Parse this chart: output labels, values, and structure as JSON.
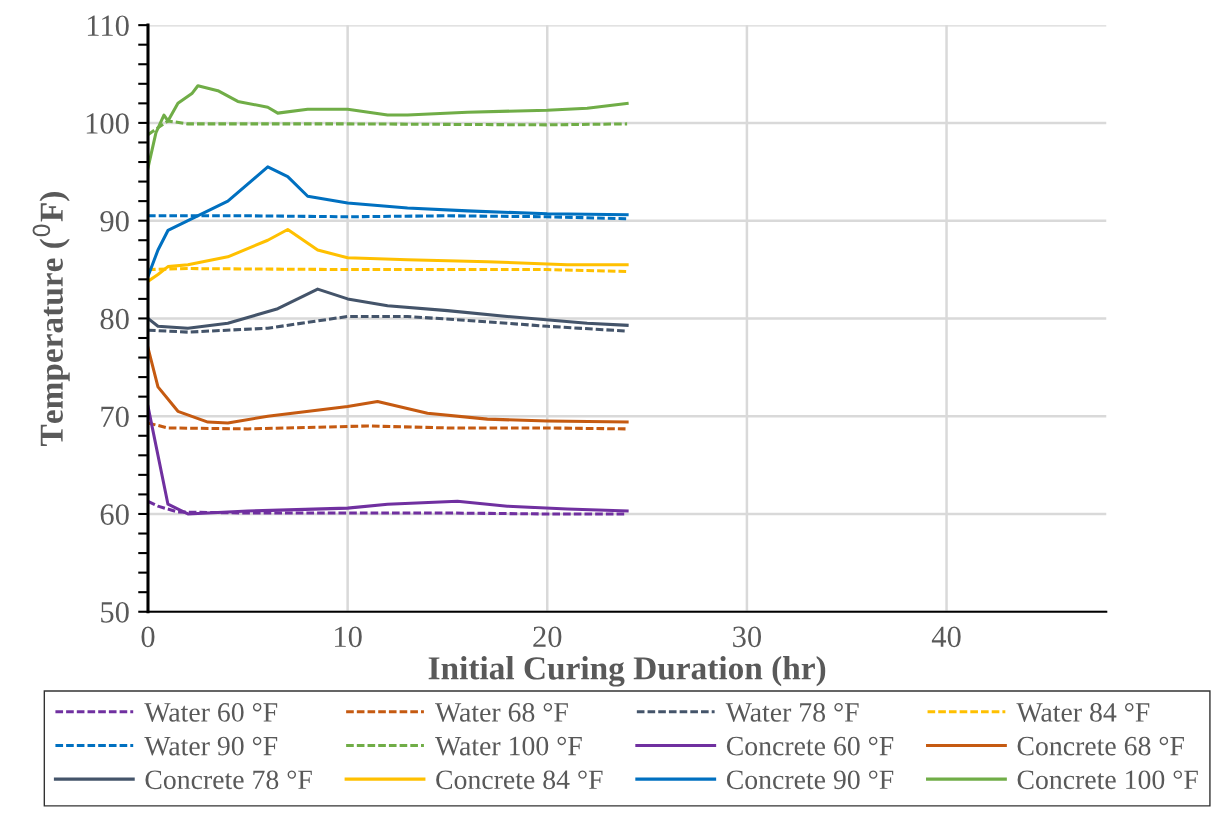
{
  "chart_data": {
    "type": "line",
    "xlabel": "Initial Curing Duration (hr)",
    "ylabel": "Temperature ($^{0}$F)",
    "xlim": [
      0,
      48
    ],
    "xticks": [
      0,
      10,
      20,
      30,
      40
    ],
    "ylim": [
      50,
      110
    ],
    "yticks": [
      50,
      60,
      70,
      80,
      90,
      100,
      110
    ],
    "grid": true,
    "legend": "bottom",
    "marker": "none",
    "series": [
      {
        "name": "Water 60 °F",
        "color": "#7030a0",
        "line_style": "dashed",
        "x": [
          0,
          0.5,
          1.5,
          5,
          10,
          15,
          20,
          24
        ],
        "values": [
          61.3,
          60.8,
          60.2,
          60.1,
          60.1,
          60.1,
          60.0,
          60.0
        ]
      },
      {
        "name": "Water 68 °F",
        "color": "#c55a11",
        "line_style": "dashed",
        "x": [
          0,
          1,
          5,
          11,
          15,
          20,
          24
        ],
        "values": [
          69.3,
          68.8,
          68.7,
          69.0,
          68.8,
          68.8,
          68.7
        ]
      },
      {
        "name": "Water 78 °F",
        "color": "#44546a",
        "line_style": "dashed",
        "x": [
          0,
          2,
          6,
          8,
          10,
          13,
          16,
          20,
          24
        ],
        "values": [
          78.8,
          78.6,
          79.0,
          79.6,
          80.2,
          80.2,
          79.8,
          79.2,
          78.7
        ]
      },
      {
        "name": "Water 84 °F",
        "color": "#ffc000",
        "line_style": "dashed",
        "x": [
          0,
          2,
          10,
          20,
          24
        ],
        "values": [
          85.0,
          85.1,
          85.0,
          85.0,
          84.8
        ]
      },
      {
        "name": "Water 90 °F",
        "color": "#0070c0",
        "line_style": "dashed",
        "x": [
          0,
          5,
          10,
          15,
          20,
          24
        ],
        "values": [
          90.5,
          90.5,
          90.4,
          90.5,
          90.4,
          90.2
        ]
      },
      {
        "name": "Water 100 °F",
        "color": "#70ad47",
        "line_style": "dashed",
        "x": [
          0,
          0.5,
          1,
          2,
          10,
          20,
          24
        ],
        "values": [
          98.8,
          99.5,
          100.2,
          99.9,
          99.9,
          99.8,
          99.9
        ]
      },
      {
        "name": "Concrete 60 °F",
        "color": "#7030a0",
        "line_style": "solid",
        "x": [
          0,
          1,
          2,
          5,
          10,
          12,
          15.5,
          18,
          21,
          24
        ],
        "values": [
          71,
          61,
          60.0,
          60.3,
          60.6,
          61,
          61.3,
          60.8,
          60.5,
          60.3
        ]
      },
      {
        "name": "Concrete 68 °F",
        "color": "#c55a11",
        "line_style": "solid",
        "x": [
          0,
          0.5,
          1.5,
          3,
          4,
          6,
          10,
          11.5,
          14,
          17,
          20,
          24
        ],
        "values": [
          77,
          73,
          70.5,
          69.4,
          69.3,
          70,
          71,
          71.5,
          70.3,
          69.7,
          69.5,
          69.4
        ]
      },
      {
        "name": "Concrete 78 °F",
        "color": "#44546a",
        "line_style": "solid",
        "x": [
          0,
          0.5,
          2,
          4,
          6.5,
          8.5,
          10,
          12,
          15,
          18,
          22,
          24
        ],
        "values": [
          80,
          79.2,
          79,
          79.5,
          81,
          83,
          82,
          81.3,
          80.8,
          80.2,
          79.5,
          79.3
        ]
      },
      {
        "name": "Concrete 84 °F",
        "color": "#ffc000",
        "line_style": "solid",
        "x": [
          0,
          0.5,
          1,
          2,
          4,
          6,
          7,
          8.5,
          10,
          13,
          17,
          21,
          24
        ],
        "values": [
          83.8,
          84.5,
          85.3,
          85.5,
          86.3,
          88,
          89.1,
          87,
          86.2,
          86,
          85.8,
          85.5,
          85.5
        ]
      },
      {
        "name": "Concrete 90 °F",
        "color": "#0070c0",
        "line_style": "solid",
        "x": [
          0,
          0.5,
          1,
          2,
          4,
          6,
          7,
          8,
          10,
          13,
          16,
          20,
          24
        ],
        "values": [
          84.3,
          87,
          89,
          90,
          92,
          95.5,
          94.5,
          92.5,
          91.8,
          91.3,
          91,
          90.7,
          90.6
        ]
      },
      {
        "name": "Concrete 100 °F",
        "color": "#70ad47",
        "line_style": "solid",
        "x": [
          0,
          0.4,
          0.8,
          1,
          1.5,
          2.2,
          2.5,
          3.5,
          4.5,
          6,
          6.5,
          8,
          10,
          12,
          13,
          16,
          20,
          22,
          24
        ],
        "values": [
          95.4,
          99,
          100.8,
          100.2,
          102,
          103,
          103.8,
          103.3,
          102.2,
          101.6,
          101,
          101.4,
          101.4,
          100.8,
          100.8,
          101.1,
          101.3,
          101.5,
          102
        ]
      }
    ]
  }
}
